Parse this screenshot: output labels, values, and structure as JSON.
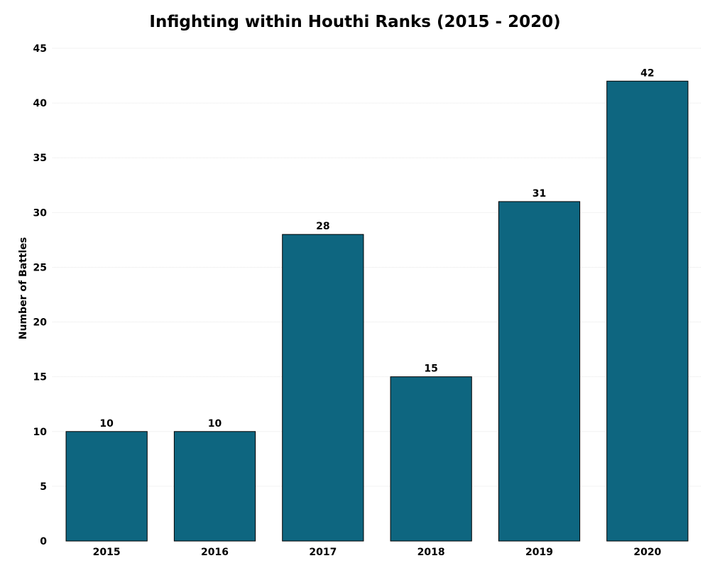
{
  "chart_data": {
    "type": "bar",
    "title": "Infighting within Houthi Ranks (2015 - 2020)",
    "xlabel": "",
    "ylabel": "Number of Battles",
    "categories": [
      "2015",
      "2016",
      "2017",
      "2018",
      "2019",
      "2020"
    ],
    "values": [
      10,
      10,
      28,
      15,
      31,
      42
    ],
    "ylim": [
      0,
      45
    ],
    "yticks": [
      0,
      5,
      10,
      15,
      20,
      25,
      30,
      35,
      40,
      45
    ],
    "grid": true,
    "bar_color": "#0e6680",
    "data_labels": true
  }
}
